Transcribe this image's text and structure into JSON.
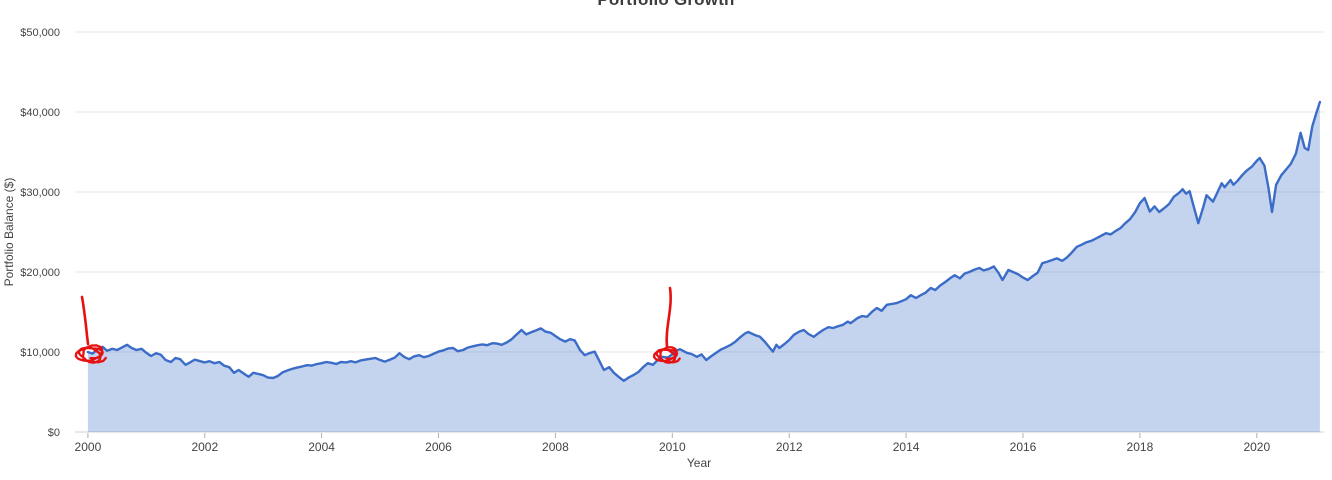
{
  "chart": {
    "title": "Portfolio Growth",
    "x_axis_label": "Year",
    "y_axis_label": "Portfolio Balance ($)"
  },
  "colors": {
    "line": "#3a6cc8",
    "fill_opacity": 0.3,
    "grid": "#e6e6e6",
    "axis_line": "#d0d0d0",
    "tick_mark": "#b0b0b0",
    "tick_text": "#444444",
    "title_text": "#3d3d3d",
    "annotation": "#e61111",
    "background": "#ffffff"
  },
  "chart_data": {
    "type": "area",
    "title": "Portfolio Growth",
    "xlabel": "Year",
    "ylabel": "Portfolio Balance ($)",
    "grid": true,
    "legend": false,
    "x_range": [
      1999.78,
      2021.15
    ],
    "y_range": [
      0,
      50000
    ],
    "x_ticks": [
      {
        "value": 2000,
        "label": "2000"
      },
      {
        "value": 2002,
        "label": "2002"
      },
      {
        "value": 2004,
        "label": "2004"
      },
      {
        "value": 2006,
        "label": "2006"
      },
      {
        "value": 2008,
        "label": "2008"
      },
      {
        "value": 2010,
        "label": "2010"
      },
      {
        "value": 2012,
        "label": "2012"
      },
      {
        "value": 2014,
        "label": "2014"
      },
      {
        "value": 2016,
        "label": "2016"
      },
      {
        "value": 2018,
        "label": "2018"
      },
      {
        "value": 2020,
        "label": "2020"
      }
    ],
    "y_ticks": [
      {
        "value": 0,
        "label": "$0"
      },
      {
        "value": 10000,
        "label": "$10,000"
      },
      {
        "value": 20000,
        "label": "$20,000"
      },
      {
        "value": 30000,
        "label": "$30,000"
      },
      {
        "value": 40000,
        "label": "$40,000"
      },
      {
        "value": 50000,
        "label": "$50,000"
      }
    ],
    "series": [
      {
        "name": "Portfolio Balance",
        "points": [
          [
            2000.0,
            10000
          ],
          [
            2000.08,
            9800
          ],
          [
            2000.17,
            10350
          ],
          [
            2000.25,
            10650
          ],
          [
            2000.33,
            10150
          ],
          [
            2000.42,
            10400
          ],
          [
            2000.5,
            10250
          ],
          [
            2000.58,
            10550
          ],
          [
            2000.67,
            10900
          ],
          [
            2000.75,
            10500
          ],
          [
            2000.83,
            10250
          ],
          [
            2000.92,
            10400
          ],
          [
            2001.0,
            9900
          ],
          [
            2001.08,
            9500
          ],
          [
            2001.17,
            9850
          ],
          [
            2001.25,
            9650
          ],
          [
            2001.33,
            9000
          ],
          [
            2001.42,
            8750
          ],
          [
            2001.5,
            9250
          ],
          [
            2001.58,
            9100
          ],
          [
            2001.67,
            8400
          ],
          [
            2001.75,
            8700
          ],
          [
            2001.83,
            9050
          ],
          [
            2001.92,
            8850
          ],
          [
            2002.0,
            8700
          ],
          [
            2002.08,
            8850
          ],
          [
            2002.17,
            8600
          ],
          [
            2002.25,
            8750
          ],
          [
            2002.33,
            8300
          ],
          [
            2002.42,
            8100
          ],
          [
            2002.5,
            7400
          ],
          [
            2002.58,
            7750
          ],
          [
            2002.67,
            7300
          ],
          [
            2002.75,
            6900
          ],
          [
            2002.83,
            7400
          ],
          [
            2002.92,
            7250
          ],
          [
            2003.0,
            7100
          ],
          [
            2003.08,
            6800
          ],
          [
            2003.17,
            6750
          ],
          [
            2003.25,
            7000
          ],
          [
            2003.33,
            7450
          ],
          [
            2003.42,
            7700
          ],
          [
            2003.5,
            7900
          ],
          [
            2003.58,
            8050
          ],
          [
            2003.67,
            8200
          ],
          [
            2003.75,
            8350
          ],
          [
            2003.83,
            8300
          ],
          [
            2003.92,
            8500
          ],
          [
            2004.0,
            8600
          ],
          [
            2004.08,
            8750
          ],
          [
            2004.17,
            8650
          ],
          [
            2004.25,
            8500
          ],
          [
            2004.33,
            8750
          ],
          [
            2004.42,
            8700
          ],
          [
            2004.5,
            8850
          ],
          [
            2004.58,
            8700
          ],
          [
            2004.67,
            8950
          ],
          [
            2004.75,
            9050
          ],
          [
            2004.83,
            9150
          ],
          [
            2004.92,
            9250
          ],
          [
            2005.0,
            9000
          ],
          [
            2005.08,
            8800
          ],
          [
            2005.17,
            9050
          ],
          [
            2005.25,
            9300
          ],
          [
            2005.33,
            9850
          ],
          [
            2005.42,
            9350
          ],
          [
            2005.5,
            9100
          ],
          [
            2005.58,
            9450
          ],
          [
            2005.67,
            9600
          ],
          [
            2005.75,
            9350
          ],
          [
            2005.83,
            9500
          ],
          [
            2005.92,
            9800
          ],
          [
            2006.0,
            10050
          ],
          [
            2006.08,
            10200
          ],
          [
            2006.17,
            10450
          ],
          [
            2006.25,
            10500
          ],
          [
            2006.33,
            10100
          ],
          [
            2006.42,
            10250
          ],
          [
            2006.5,
            10550
          ],
          [
            2006.58,
            10700
          ],
          [
            2006.67,
            10850
          ],
          [
            2006.75,
            10950
          ],
          [
            2006.83,
            10850
          ],
          [
            2006.92,
            11100
          ],
          [
            2007.0,
            11050
          ],
          [
            2007.08,
            10900
          ],
          [
            2007.17,
            11200
          ],
          [
            2007.25,
            11600
          ],
          [
            2007.33,
            12150
          ],
          [
            2007.42,
            12750
          ],
          [
            2007.5,
            12200
          ],
          [
            2007.58,
            12450
          ],
          [
            2007.67,
            12700
          ],
          [
            2007.75,
            12950
          ],
          [
            2007.83,
            12550
          ],
          [
            2007.92,
            12400
          ],
          [
            2008.0,
            12000
          ],
          [
            2008.08,
            11600
          ],
          [
            2008.17,
            11300
          ],
          [
            2008.25,
            11600
          ],
          [
            2008.33,
            11450
          ],
          [
            2008.42,
            10250
          ],
          [
            2008.5,
            9600
          ],
          [
            2008.58,
            9850
          ],
          [
            2008.67,
            10050
          ],
          [
            2008.75,
            8900
          ],
          [
            2008.83,
            7750
          ],
          [
            2008.92,
            8100
          ],
          [
            2009.0,
            7400
          ],
          [
            2009.08,
            6900
          ],
          [
            2009.17,
            6400
          ],
          [
            2009.25,
            6800
          ],
          [
            2009.33,
            7100
          ],
          [
            2009.42,
            7500
          ],
          [
            2009.5,
            8100
          ],
          [
            2009.58,
            8600
          ],
          [
            2009.67,
            8400
          ],
          [
            2009.75,
            9000
          ],
          [
            2009.83,
            9400
          ],
          [
            2009.92,
            9300
          ],
          [
            2010.0,
            9700
          ],
          [
            2010.08,
            10200
          ],
          [
            2010.13,
            10350
          ],
          [
            2010.25,
            9900
          ],
          [
            2010.33,
            9750
          ],
          [
            2010.42,
            9400
          ],
          [
            2010.5,
            9700
          ],
          [
            2010.58,
            9000
          ],
          [
            2010.67,
            9500
          ],
          [
            2010.75,
            9900
          ],
          [
            2010.83,
            10300
          ],
          [
            2010.92,
            10600
          ],
          [
            2011.0,
            10900
          ],
          [
            2011.08,
            11300
          ],
          [
            2011.17,
            11900
          ],
          [
            2011.25,
            12350
          ],
          [
            2011.3,
            12500
          ],
          [
            2011.42,
            12100
          ],
          [
            2011.5,
            11900
          ],
          [
            2011.58,
            11300
          ],
          [
            2011.67,
            10500
          ],
          [
            2011.72,
            10050
          ],
          [
            2011.78,
            10900
          ],
          [
            2011.83,
            10500
          ],
          [
            2011.92,
            11000
          ],
          [
            2012.0,
            11500
          ],
          [
            2012.08,
            12150
          ],
          [
            2012.17,
            12550
          ],
          [
            2012.25,
            12750
          ],
          [
            2012.33,
            12250
          ],
          [
            2012.42,
            11900
          ],
          [
            2012.5,
            12350
          ],
          [
            2012.58,
            12750
          ],
          [
            2012.67,
            13100
          ],
          [
            2012.75,
            13000
          ],
          [
            2012.83,
            13200
          ],
          [
            2012.92,
            13400
          ],
          [
            2013.0,
            13800
          ],
          [
            2013.05,
            13600
          ],
          [
            2013.17,
            14250
          ],
          [
            2013.25,
            14500
          ],
          [
            2013.33,
            14400
          ],
          [
            2013.42,
            15050
          ],
          [
            2013.5,
            15500
          ],
          [
            2013.58,
            15150
          ],
          [
            2013.67,
            15900
          ],
          [
            2013.75,
            16000
          ],
          [
            2013.83,
            16100
          ],
          [
            2013.92,
            16350
          ],
          [
            2014.0,
            16600
          ],
          [
            2014.08,
            17100
          ],
          [
            2014.17,
            16750
          ],
          [
            2014.25,
            17100
          ],
          [
            2014.33,
            17400
          ],
          [
            2014.42,
            18000
          ],
          [
            2014.5,
            17750
          ],
          [
            2014.58,
            18300
          ],
          [
            2014.67,
            18750
          ],
          [
            2014.75,
            19200
          ],
          [
            2014.83,
            19600
          ],
          [
            2014.92,
            19200
          ],
          [
            2015.0,
            19800
          ],
          [
            2015.08,
            20000
          ],
          [
            2015.17,
            20300
          ],
          [
            2015.25,
            20500
          ],
          [
            2015.33,
            20200
          ],
          [
            2015.42,
            20400
          ],
          [
            2015.5,
            20700
          ],
          [
            2015.58,
            19900
          ],
          [
            2015.65,
            19000
          ],
          [
            2015.75,
            20250
          ],
          [
            2015.83,
            20000
          ],
          [
            2015.92,
            19700
          ],
          [
            2016.0,
            19300
          ],
          [
            2016.08,
            19000
          ],
          [
            2016.17,
            19500
          ],
          [
            2016.25,
            19900
          ],
          [
            2016.33,
            21100
          ],
          [
            2016.42,
            21300
          ],
          [
            2016.5,
            21500
          ],
          [
            2016.58,
            21700
          ],
          [
            2016.67,
            21400
          ],
          [
            2016.75,
            21800
          ],
          [
            2016.83,
            22400
          ],
          [
            2016.92,
            23150
          ],
          [
            2017.0,
            23400
          ],
          [
            2017.08,
            23700
          ],
          [
            2017.17,
            23900
          ],
          [
            2017.25,
            24200
          ],
          [
            2017.33,
            24500
          ],
          [
            2017.42,
            24850
          ],
          [
            2017.5,
            24700
          ],
          [
            2017.58,
            25100
          ],
          [
            2017.67,
            25500
          ],
          [
            2017.75,
            26100
          ],
          [
            2017.83,
            26600
          ],
          [
            2017.92,
            27500
          ],
          [
            2018.0,
            28600
          ],
          [
            2018.08,
            29250
          ],
          [
            2018.17,
            27550
          ],
          [
            2018.25,
            28200
          ],
          [
            2018.33,
            27500
          ],
          [
            2018.42,
            28000
          ],
          [
            2018.5,
            28500
          ],
          [
            2018.58,
            29400
          ],
          [
            2018.67,
            29900
          ],
          [
            2018.73,
            30350
          ],
          [
            2018.79,
            29800
          ],
          [
            2018.85,
            30100
          ],
          [
            2018.92,
            28200
          ],
          [
            2019.0,
            26100
          ],
          [
            2019.08,
            28000
          ],
          [
            2019.14,
            29600
          ],
          [
            2019.25,
            28800
          ],
          [
            2019.33,
            30000
          ],
          [
            2019.4,
            31100
          ],
          [
            2019.45,
            30600
          ],
          [
            2019.55,
            31500
          ],
          [
            2019.6,
            30900
          ],
          [
            2019.67,
            31400
          ],
          [
            2019.75,
            32100
          ],
          [
            2019.83,
            32700
          ],
          [
            2019.92,
            33200
          ],
          [
            2020.0,
            33900
          ],
          [
            2020.05,
            34250
          ],
          [
            2020.13,
            33300
          ],
          [
            2020.2,
            30500
          ],
          [
            2020.26,
            27500
          ],
          [
            2020.33,
            30900
          ],
          [
            2020.42,
            32100
          ],
          [
            2020.5,
            32800
          ],
          [
            2020.58,
            33500
          ],
          [
            2020.67,
            34800
          ],
          [
            2020.75,
            37400
          ],
          [
            2020.82,
            35500
          ],
          [
            2020.88,
            35250
          ],
          [
            2020.95,
            38200
          ],
          [
            2021.02,
            39900
          ],
          [
            2021.08,
            41250
          ]
        ]
      }
    ],
    "annotations": [
      {
        "name": "scribble-mark-2000",
        "description": "hand-drawn red scribble circling the $10,000 start value at year 2000, with stroke pointing down from above",
        "color": "#e61111",
        "pointer": {
          "x1": 82,
          "y1": 297,
          "x2": 88,
          "y2": 344
        },
        "scribble": {
          "cx": 91,
          "cy": 354,
          "rx": 14,
          "ry": 9
        }
      },
      {
        "name": "scribble-mark-2010",
        "description": "hand-drawn red scribble circling the ~$9,700 value at year 2010, with stroke pointing down from above",
        "color": "#e61111",
        "pointer": {
          "x1": 670,
          "y1": 288,
          "x2": 667,
          "y2": 347
        },
        "scribble": {
          "cx": 667,
          "cy": 355,
          "rx": 12,
          "ry": 8
        }
      }
    ]
  }
}
